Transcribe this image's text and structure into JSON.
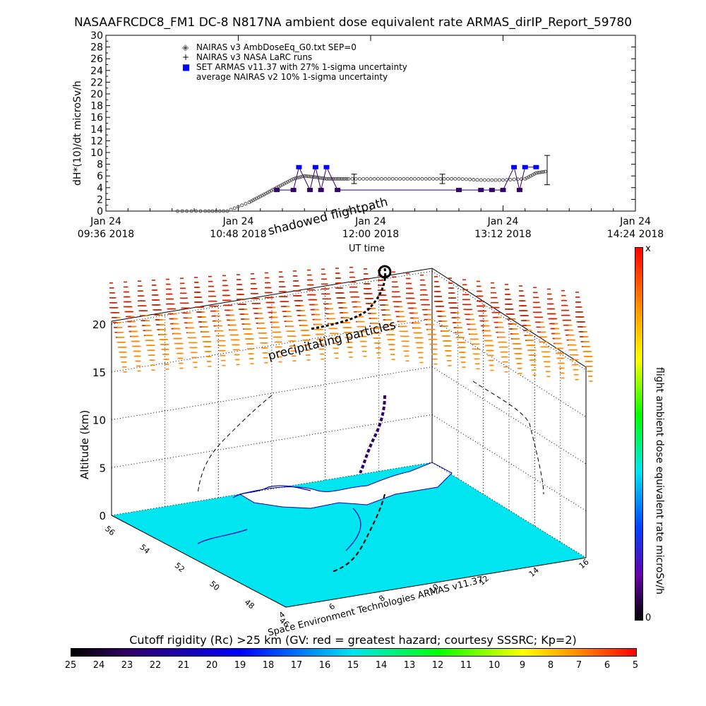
{
  "title": "NASAAFRCDC8_FM1  DC-8    N817NA ambient dose equivalent rate ARMAS_dirIP_Report_59780",
  "colors": {
    "nairas_points": "#555555",
    "armas": "#0000ff",
    "armas_line": "#330066",
    "ocean": "#00e5f0",
    "land": "#ffffff",
    "particles_top": "#cc2200",
    "particles_bottom": "#ff8800"
  },
  "chart_data": [
    {
      "type": "scatter",
      "title": "",
      "ylabel": "dH*(10)/dt microSv/h",
      "xlabel": "UT time",
      "ylim": [
        0,
        30
      ],
      "y_ticks": [
        "0",
        "2",
        "4",
        "6",
        "8",
        "10",
        "12",
        "14",
        "16",
        "18",
        "20",
        "22",
        "24",
        "26",
        "28",
        "30"
      ],
      "x_ticks": [
        {
          "line1": "Jan 24",
          "line2": "09:36 2018"
        },
        {
          "line1": "Jan 24",
          "line2": "10:48 2018"
        },
        {
          "line1": "Jan 24",
          "line2": "12:00 2018"
        },
        {
          "line1": "Jan 24",
          "line2": "13:12 2018"
        },
        {
          "line1": "Jan 24",
          "line2": "14:24 2018"
        }
      ],
      "x_units": "hours UT",
      "xlim": [
        9.6,
        14.4
      ],
      "legend": [
        {
          "symbol": "◈",
          "label": "NAIRAS v3 AmbDoseEq_G0.txt SEP=0"
        },
        {
          "symbol": "+",
          "label": "NAIRAS v3 NASA LaRC runs"
        },
        {
          "symbol": "■",
          "label": "SET ARMAS v11.37 with 27% 1-sigma uncertainty"
        },
        {
          "symbol": "",
          "label": "average NAIRAS v2 10% 1-sigma uncertainty"
        }
      ],
      "series": [
        {
          "name": "NAIRAS v3 AmbDoseEq_G0.txt SEP=0",
          "x": [
            10.25,
            10.5,
            10.7,
            10.9,
            11.0,
            11.1,
            11.2,
            11.3,
            11.4,
            11.5,
            11.6,
            11.7,
            11.8,
            12.0,
            12.2,
            12.4,
            12.6,
            12.8,
            13.0,
            13.2,
            13.4,
            13.5,
            13.6
          ],
          "y": [
            0,
            0,
            0,
            1.5,
            2.5,
            3.5,
            4.5,
            5.5,
            6.0,
            5.8,
            5.5,
            5.5,
            5.5,
            5.5,
            5.5,
            5.5,
            5.5,
            5.5,
            5.3,
            5.3,
            5.5,
            6.5,
            6.8
          ]
        },
        {
          "name": "SET ARMAS v11.37 with 27% 1-sigma uncertainty",
          "x": [
            11.15,
            11.3,
            11.35,
            11.45,
            11.5,
            11.55,
            11.6,
            11.7,
            12.8,
            13.0,
            13.1,
            13.2,
            13.3,
            13.35,
            13.4,
            13.5
          ],
          "y": [
            3.6,
            3.6,
            7.5,
            3.6,
            7.5,
            3.6,
            7.5,
            3.6,
            3.6,
            3.6,
            3.6,
            3.6,
            7.5,
            3.6,
            7.5,
            7.5
          ]
        }
      ],
      "error_bars": [
        {
          "x": 11.85,
          "y": 5.5,
          "err": 0.8
        },
        {
          "x": 12.65,
          "y": 5.5,
          "err": 0.8
        },
        {
          "x": 13.6,
          "y": 7.0,
          "err": 2.5
        }
      ]
    },
    {
      "type": "scatter",
      "title": "",
      "zlabel": "Altitude (km)",
      "z_ticks": [
        "0",
        "5",
        "10",
        "15",
        "20"
      ],
      "lat_ticks": [
        "46",
        "48",
        "50",
        "52",
        "54",
        "56"
      ],
      "lon_ticks": [
        "4",
        "6",
        "8",
        "10",
        "12",
        "14",
        "16"
      ],
      "annotations": [
        "shadowed flightpath",
        "UT time",
        "precipitating particles",
        "Space Environment Technologies ARMAS v11.37"
      ],
      "colorbar": {
        "label": "flight ambient dose equivalent rate microSv/h",
        "top_label": "x",
        "bottom_label": "0"
      },
      "scale": {
        "title": "Cutoff rigidity (Rc) >25 km (GV: red = greatest hazard; courtesy SSSRC; Kp=2)",
        "ticks": [
          "25",
          "24",
          "23",
          "22",
          "21",
          "20",
          "19",
          "18",
          "17",
          "16",
          "15",
          "14",
          "13",
          "12",
          "11",
          "10",
          "9",
          "8",
          "7",
          "6",
          "5"
        ]
      }
    }
  ]
}
